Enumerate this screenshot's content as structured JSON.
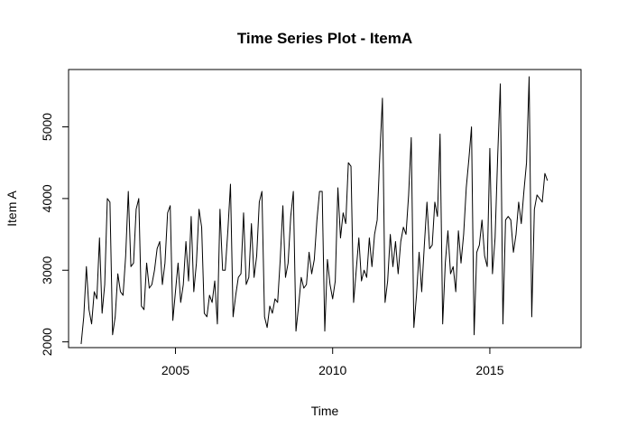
{
  "chart_data": {
    "type": "line",
    "title": "Time Series Plot - ItemA",
    "xlabel": "Time",
    "ylabel": "Item A",
    "xlim": [
      2001.6,
      2017.9
    ],
    "ylim": [
      1920,
      5800
    ],
    "x_ticks": [
      2005,
      2010,
      2015
    ],
    "y_ticks": [
      2000,
      3000,
      4000,
      5000
    ],
    "x_tick_labels": [
      "2005",
      "2010",
      "2015"
    ],
    "y_tick_labels": [
      "2000",
      "3000",
      "4000",
      "5000"
    ],
    "grid": false,
    "legend": "none",
    "line_color": "#000000",
    "series": [
      {
        "start": 2002.0,
        "frequency": 12,
        "values": [
          1970,
          2350,
          3050,
          2450,
          2250,
          2700,
          2600,
          3450,
          2400,
          2800,
          4000,
          3950,
          2100,
          2350,
          2950,
          2700,
          2650,
          3200,
          4100,
          3050,
          3100,
          3850,
          4000,
          2500,
          2450,
          3100,
          2750,
          2800,
          3000,
          3300,
          3400,
          2800,
          3100,
          3800,
          3900,
          2300,
          2700,
          3100,
          2550,
          2800,
          3400,
          2850,
          3750,
          2700,
          3100,
          3850,
          3600,
          2400,
          2350,
          2650,
          2550,
          2850,
          2250,
          3850,
          3000,
          3000,
          3550,
          4200,
          2350,
          2650,
          2900,
          2950,
          3800,
          2800,
          2900,
          3650,
          2900,
          3200,
          3950,
          4100,
          2350,
          2200,
          2500,
          2400,
          2600,
          2550,
          3150,
          3900,
          2900,
          3100,
          3750,
          4100,
          2150,
          2500,
          2900,
          2750,
          2800,
          3250,
          2950,
          3150,
          3700,
          4100,
          4100,
          2150,
          3150,
          2800,
          2600,
          2850,
          4150,
          3450,
          3800,
          3650,
          4500,
          4450,
          2550,
          3000,
          3450,
          2850,
          3000,
          2900,
          3450,
          3050,
          3500,
          3700,
          4600,
          5400,
          2550,
          2850,
          3500,
          3050,
          3400,
          2950,
          3400,
          3600,
          3500,
          4050,
          4850,
          2200,
          2650,
          3250,
          2700,
          3350,
          3950,
          3300,
          3350,
          3950,
          3750,
          4900,
          2250,
          3100,
          3550,
          2950,
          3050,
          2700,
          3550,
          3100,
          3500,
          4150,
          4550,
          5000,
          2100,
          3250,
          3350,
          3700,
          3200,
          3050,
          4700,
          2950,
          3450,
          4600,
          5600,
          2250,
          3700,
          3750,
          3700,
          3250,
          3500,
          3950,
          3650,
          4100,
          4500,
          5700,
          2350,
          3850,
          4050,
          4000,
          3950,
          4350,
          4250
        ]
      }
    ]
  }
}
